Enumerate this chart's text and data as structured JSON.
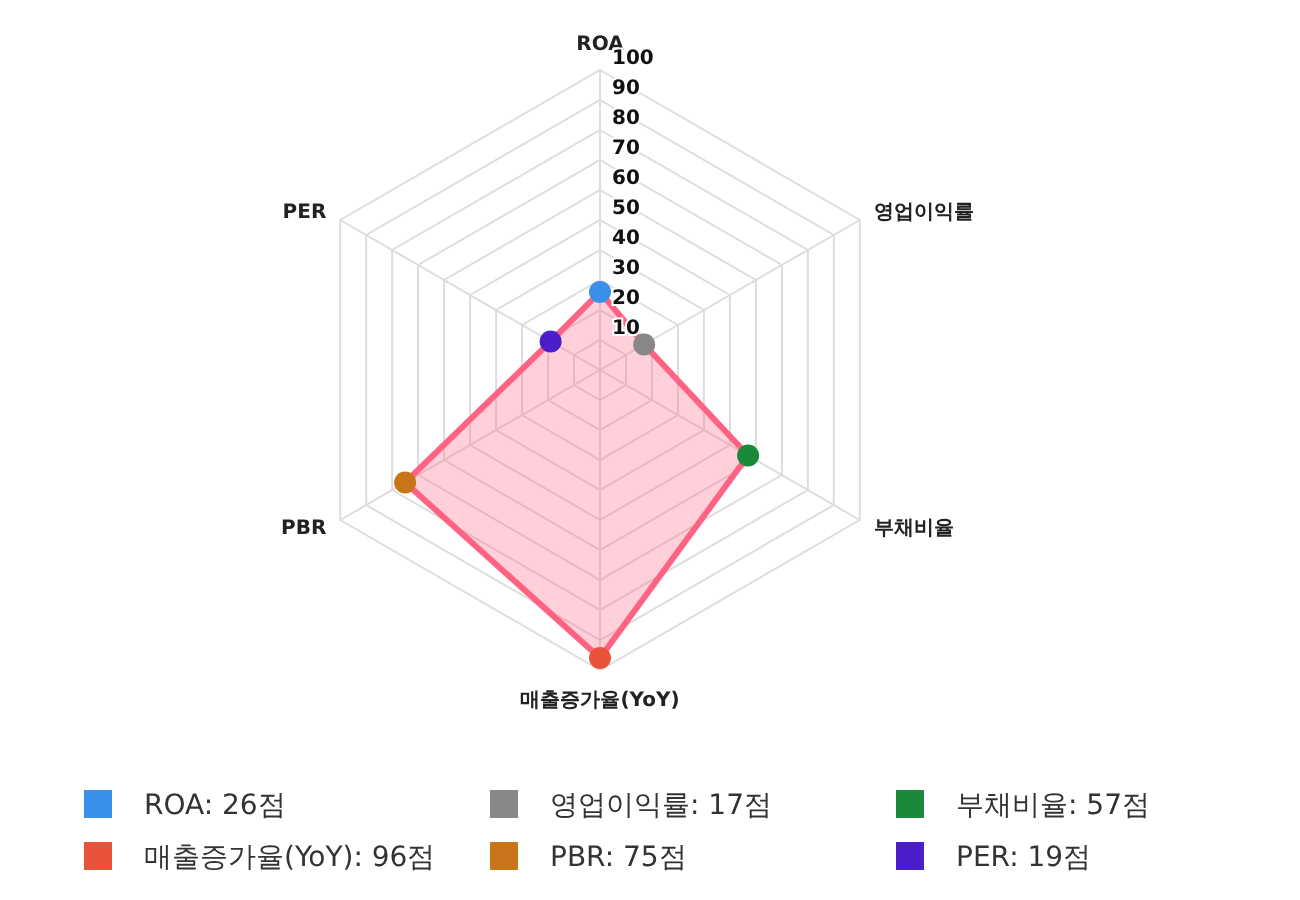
{
  "chart_data": {
    "type": "radar",
    "categories": [
      "ROA",
      "영업이익률",
      "부채비율",
      "매출증가율(YoY)",
      "PBR",
      "PER"
    ],
    "series": [
      {
        "color": "#ff6384",
        "values": [
          26,
          17,
          57,
          96,
          75,
          19
        ],
        "colors": [
          "#3a8fe8",
          "#888888",
          "#1a8a3a",
          "#e8533a",
          "#c87418",
          "#4a1ec8"
        ]
      }
    ],
    "annotations": [
      "ROA: 26점",
      "영업이익률: 17점",
      "부채비율: 57점",
      "매출증가율(YoY): 96점",
      "PBR: 75점",
      "PER: 19점"
    ],
    "ylim": [
      0,
      100
    ],
    "yticks": [
      10,
      20,
      30,
      40,
      50,
      60,
      70,
      80,
      90,
      100
    ],
    "grid": true,
    "marker": "circle"
  }
}
